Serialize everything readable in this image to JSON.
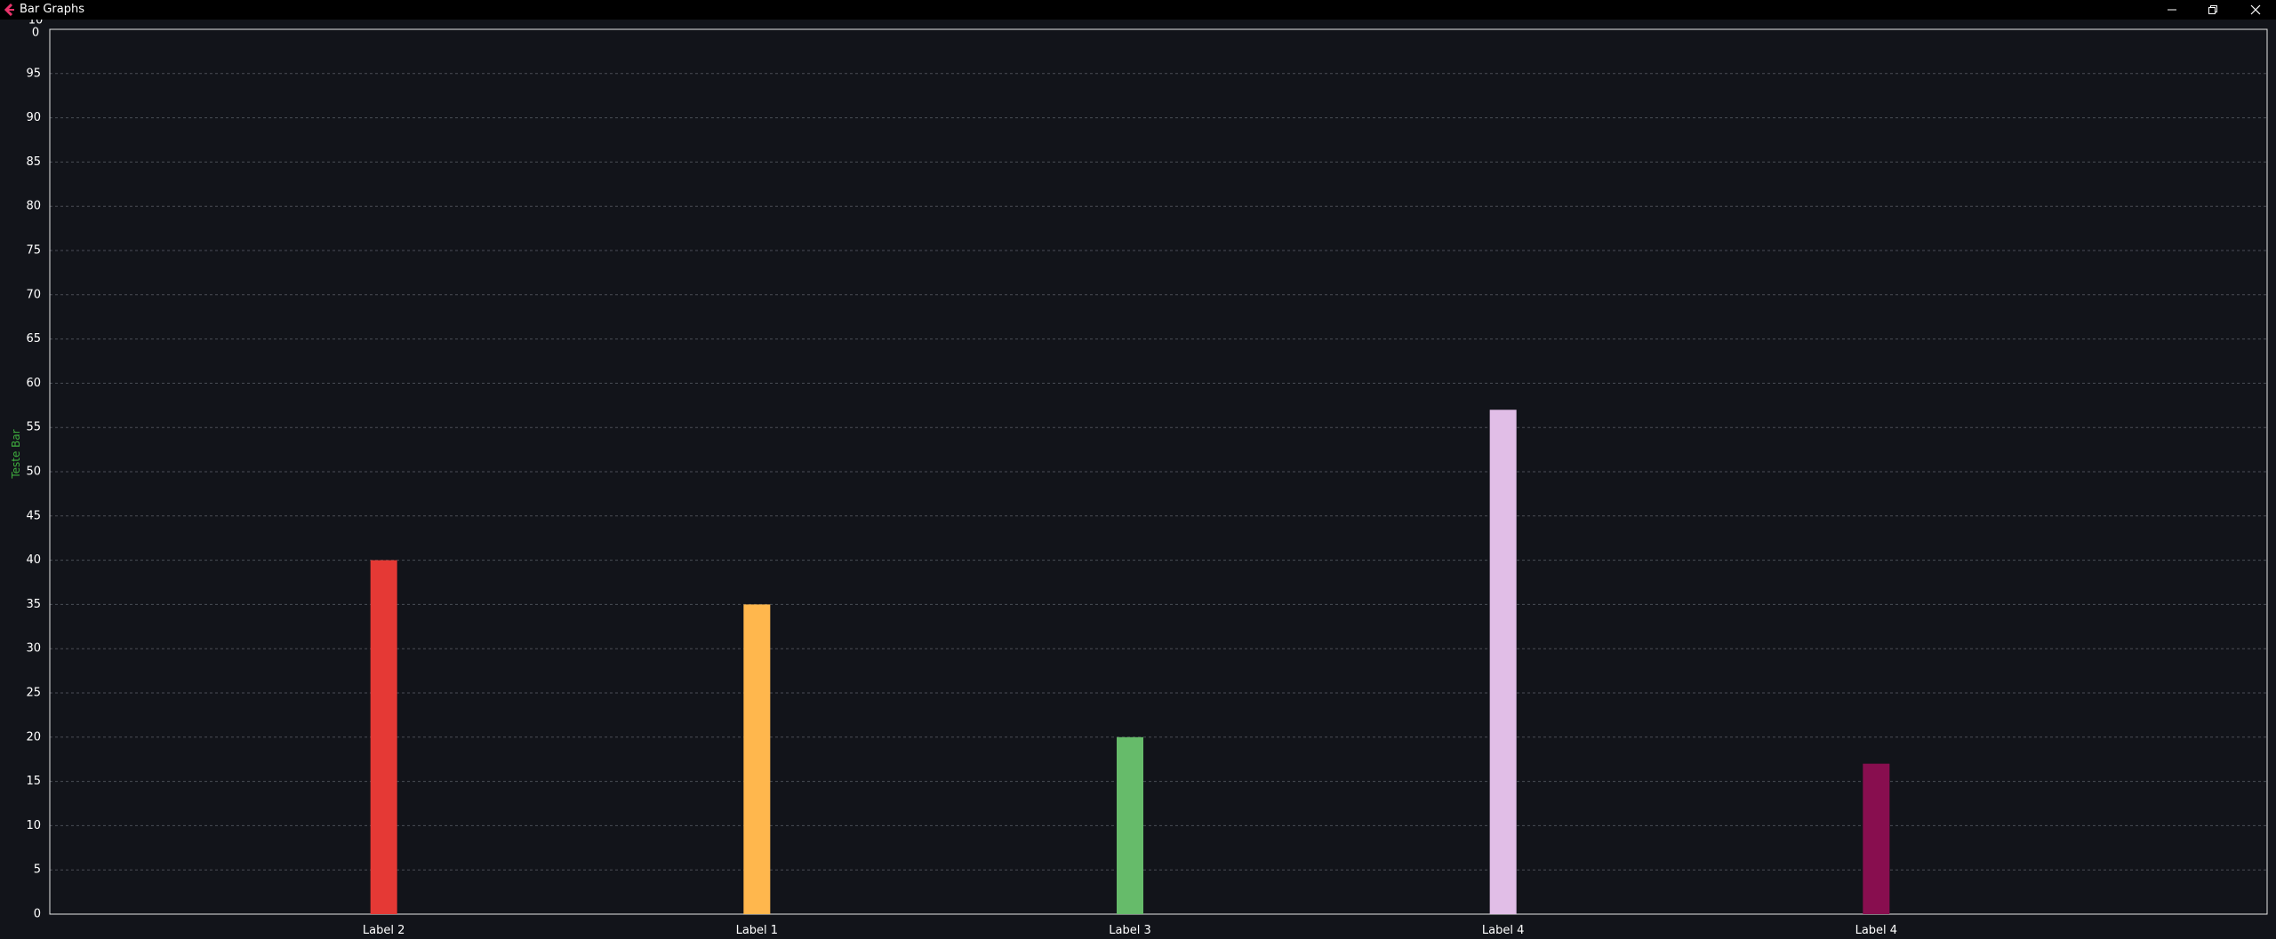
{
  "window": {
    "title": "Bar Graphs"
  },
  "icons": {
    "app": "app-back-icon",
    "minimize": "minimize-icon",
    "maximize": "restore-icon",
    "close": "close-icon"
  },
  "colors": {
    "background": "#12141a",
    "titlebar": "#000000",
    "axis": "#e6e6e6",
    "grid": "#4a4d55",
    "app_icon": "#e8336a"
  },
  "chart_data": {
    "type": "bar",
    "categories": [
      "Label 2",
      "Label 1",
      "Label 3",
      "Label 4",
      "Label 4"
    ],
    "values": [
      40,
      35,
      20,
      57,
      17
    ],
    "bar_colors": [
      "#e53935",
      "#ffb74d",
      "#66bb6a",
      "#e1bee7",
      "#880e4f"
    ],
    "ylabel": "Teste Bar",
    "xlabel": "",
    "title": "",
    "ylim": [
      0,
      100
    ],
    "yticks": [
      "0",
      "5",
      "10",
      "15",
      "20",
      "25",
      "30",
      "35",
      "40",
      "45",
      "50",
      "55",
      "60",
      "65",
      "70",
      "75",
      "80",
      "85",
      "90",
      "95",
      "10\n0"
    ],
    "grid": true
  }
}
